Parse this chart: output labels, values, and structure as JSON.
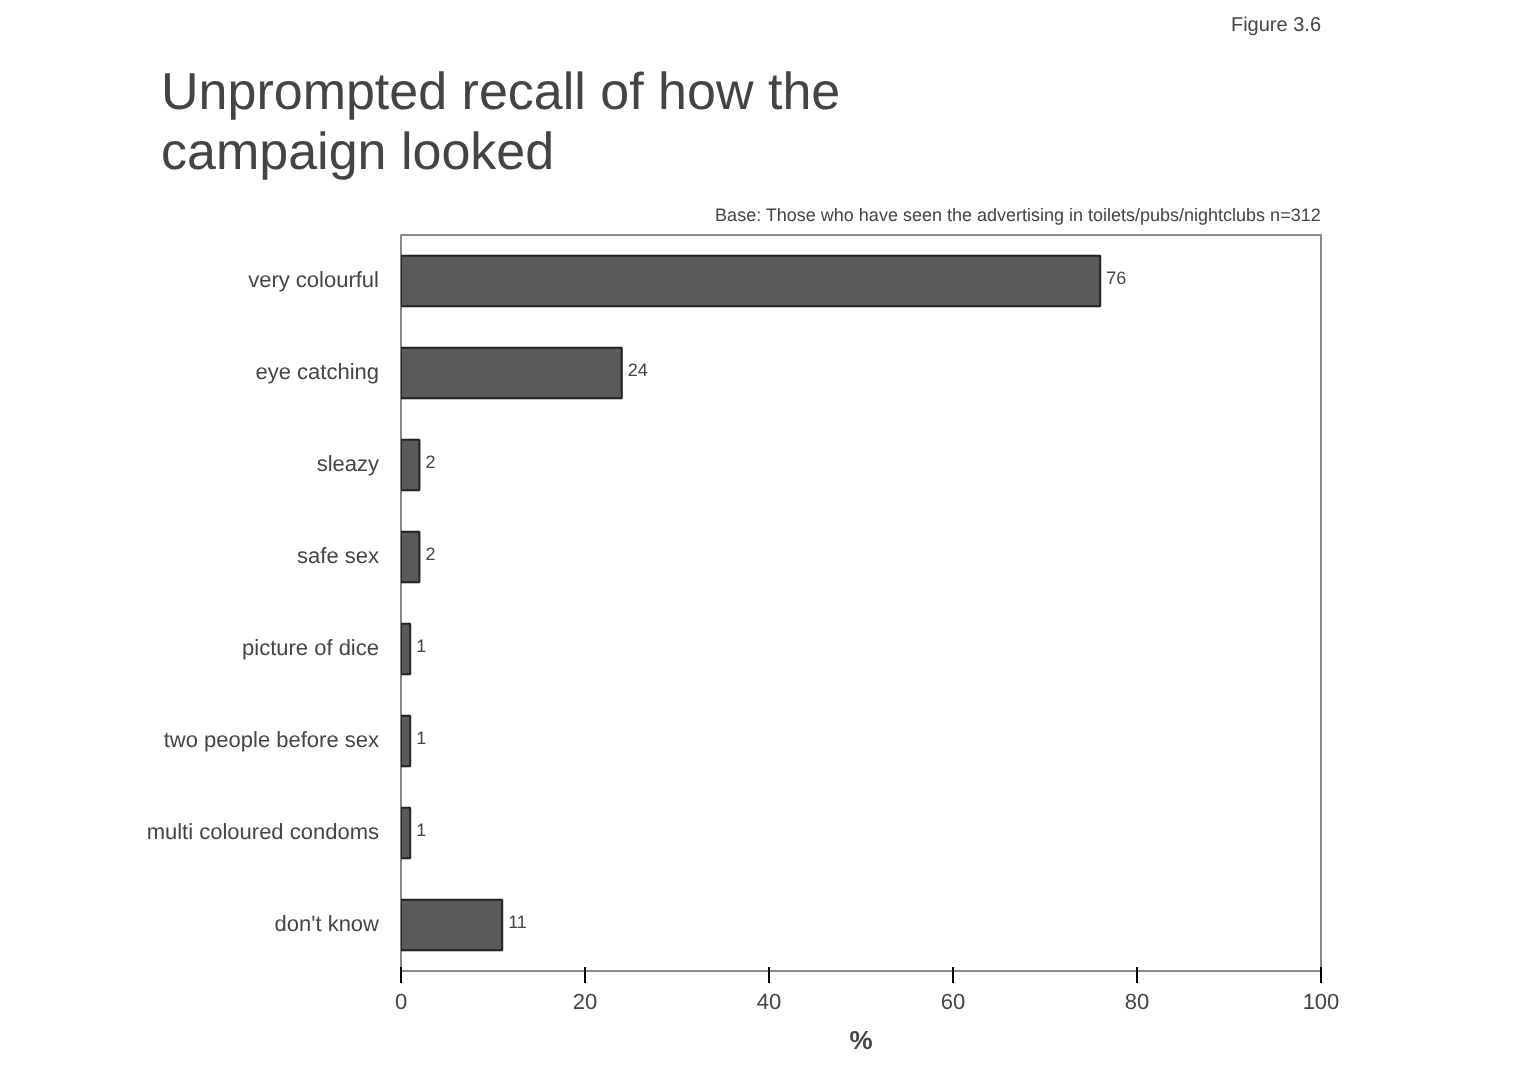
{
  "chart_data": {
    "type": "bar",
    "orientation": "horizontal",
    "title": "Unprompted recall of how the campaign looked",
    "subtitle": "Base: Those who have seen the advertising in toilets/pubs/nightclubs n=312",
    "annotations": [
      "Figure 3.6"
    ],
    "categories": [
      "very colourful",
      "eye catching",
      "sleazy",
      "safe sex",
      "picture of dice",
      "two people before sex",
      "multi coloured condoms",
      "don't know"
    ],
    "values": [
      76,
      24,
      2,
      2,
      1,
      1,
      1,
      11
    ],
    "color": "#5a5a5a",
    "data_labels": true,
    "xlabel": "%",
    "xlim": [
      0,
      100
    ],
    "xticks": [
      0,
      20,
      40,
      60,
      80,
      100
    ],
    "grid": false
  }
}
